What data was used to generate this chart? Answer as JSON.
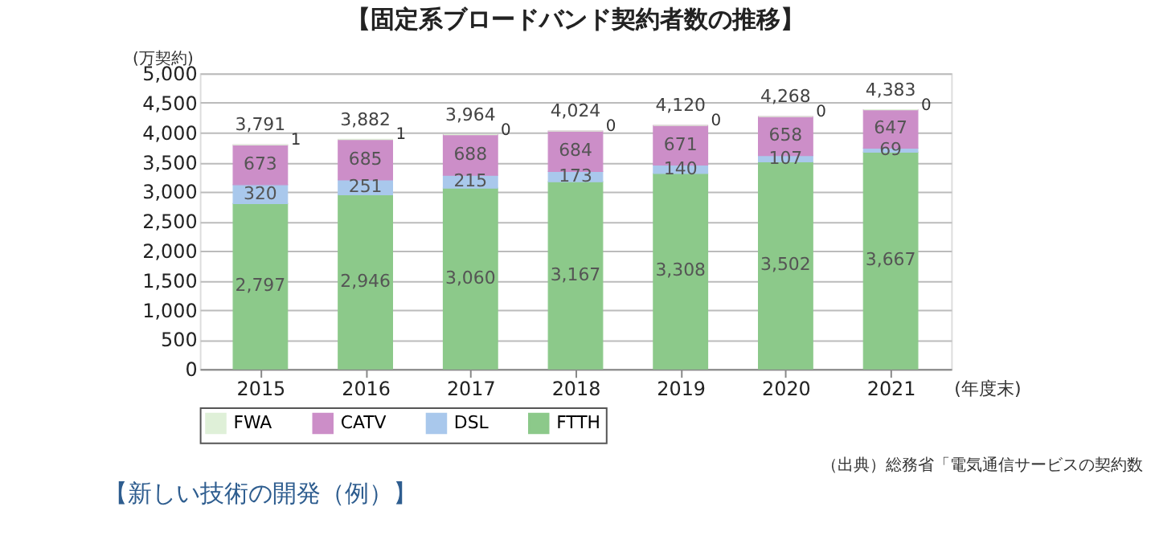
{
  "chart_data": {
    "type": "bar",
    "title": "【固定系ブロードバンド契約者数の推移】",
    "ylabel": "(万契約)",
    "xlabel": "(年度末)",
    "categories": [
      "2015",
      "2016",
      "2017",
      "2018",
      "2019",
      "2020",
      "2021"
    ],
    "stacked": true,
    "series": [
      {
        "name": "FTTH",
        "color": "#8cc98a",
        "values": [
          2797,
          2946,
          3060,
          3167,
          3308,
          3502,
          3667
        ],
        "value_labels": [
          "2,797",
          "2,946",
          "3,060",
          "3,167",
          "3,308",
          "3,502",
          "3,667"
        ]
      },
      {
        "name": "DSL",
        "color": "#a9c8ec",
        "values": [
          320,
          251,
          215,
          173,
          140,
          107,
          69
        ],
        "value_labels": [
          "320",
          "251",
          "215",
          "173",
          "140",
          "107",
          "69"
        ]
      },
      {
        "name": "CATV",
        "color": "#cc8ec8",
        "values": [
          673,
          685,
          688,
          684,
          671,
          658,
          647
        ],
        "value_labels": [
          "673",
          "685",
          "688",
          "684",
          "671",
          "658",
          "647"
        ]
      },
      {
        "name": "FWA",
        "color": "#dff0d8",
        "values": [
          1,
          1,
          0,
          0,
          0,
          0,
          0
        ],
        "value_labels": [
          "1",
          "1",
          "0",
          "0",
          "0",
          "0",
          "0"
        ]
      }
    ],
    "totals": [
      "3,791",
      "3,882",
      "3,964",
      "4,024",
      "4,120",
      "4,268",
      "4,383"
    ],
    "ylim": [
      0,
      5000
    ],
    "yticks": [
      0,
      500,
      {
        "value": 1000,
        "label": "1,000"
      },
      {
        "value": 1500,
        "label": "1,500"
      },
      {
        "value": 2000,
        "label": "2,000"
      },
      {
        "value": 2500,
        "label": "2,500"
      },
      {
        "value": 3000,
        "label": "3,000"
      },
      {
        "value": 3500,
        "label": "3,500"
      },
      {
        "value": 4000,
        "label": "4,000"
      },
      {
        "value": 4500,
        "label": "4,500"
      },
      {
        "value": 5000,
        "label": "5,000"
      }
    ],
    "grid": "y",
    "legend": "bottom",
    "annotations": [
      "（出典）総務省「電気通信サービスの契約数",
      "【新しい技術の開発（例）】"
    ]
  }
}
